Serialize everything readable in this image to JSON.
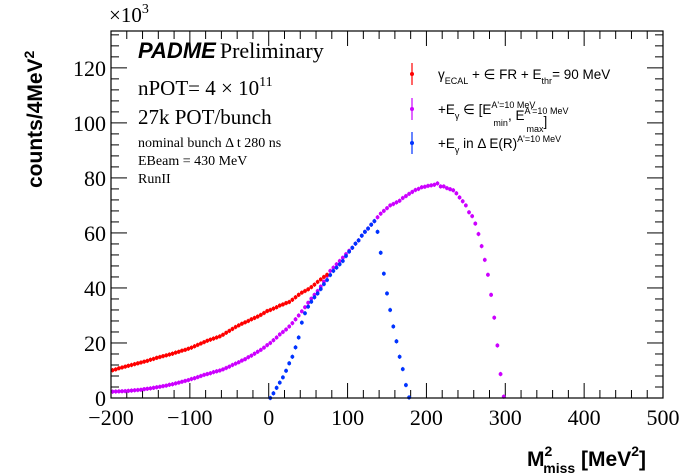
{
  "chart_data": {
    "type": "scatter",
    "title": "",
    "xlabel": "M2miss [MeV2]",
    "xlabel_parts": {
      "main": "M",
      "sup": "2",
      "sub": "miss",
      "unit_open": " [MeV",
      "unit_sup": "2",
      "unit_close": "]"
    },
    "ylabel": "counts/4MeV2",
    "ylabel_parts": {
      "main": "counts/4MeV",
      "sup": "2"
    },
    "y_multiplier": {
      "base": "×10",
      "exp": "3"
    },
    "xlim": [
      -200,
      500
    ],
    "ylim": [
      0,
      133.4
    ],
    "x_ticks": [
      -200,
      -100,
      0,
      100,
      200,
      300,
      400,
      500
    ],
    "x_tick_labels": [
      "−200",
      "−100",
      "0",
      "100",
      "200",
      "300",
      "400",
      "500"
    ],
    "y_ticks": [
      0,
      20,
      40,
      60,
      80,
      100,
      120
    ],
    "y_tick_labels": [
      "0",
      "20",
      "40",
      "60",
      "80",
      "100",
      "120"
    ],
    "x_minor_step": 20,
    "y_minor_step": 4,
    "grid": false,
    "legend_position": "top-right",
    "annotations": {
      "experiment": "PADME",
      "status": "Preliminary",
      "npot_prefix": "nPOT= 4 × 10",
      "npot_exp": "11",
      "pot_per_bunch": "27k POT/bunch",
      "bunch_dt": "nominal bunch Δ t 280 ns",
      "ebeam": "EBeam = 430 MeV",
      "run": "RunII"
    },
    "series": [
      {
        "name": "γECAL + ∈ FR + Ethr = 90 MeV",
        "legend_parts": [
          {
            "t": "γ",
            "s": "n"
          },
          {
            "t": "ECAL",
            "s": "sub"
          },
          {
            "t": " + ∈ FR + E",
            "s": "n"
          },
          {
            "t": "thr",
            "s": "sub"
          },
          {
            "t": "= 90 MeV",
            "s": "n"
          }
        ],
        "color": "#ff0000",
        "x": [
          -198,
          -194,
          -190,
          -186,
          -182,
          -178,
          -174,
          -170,
          -166,
          -162,
          -158,
          -154,
          -150,
          -146,
          -142,
          -138,
          -134,
          -130,
          -126,
          -122,
          -118,
          -114,
          -110,
          -106,
          -102,
          -98,
          -94,
          -90,
          -86,
          -82,
          -78,
          -74,
          -70,
          -66,
          -62,
          -58,
          -54,
          -50,
          -46,
          -42,
          -38,
          -34,
          -30,
          -26,
          -22,
          -18,
          -14,
          -10,
          -6,
          -2,
          2,
          6,
          10,
          14,
          18,
          22,
          26,
          30,
          34,
          38,
          42,
          46,
          50,
          54,
          58,
          62,
          66,
          70,
          74
        ],
        "y": [
          10.1,
          10.4,
          10.8,
          11.1,
          11.4,
          11.7,
          12.0,
          12.3,
          12.6,
          12.9,
          13.2,
          13.5,
          13.9,
          14.2,
          14.6,
          14.9,
          15.2,
          15.5,
          15.8,
          16.1,
          16.5,
          16.8,
          17.2,
          17.5,
          17.9,
          18.3,
          18.8,
          19.3,
          19.8,
          20.3,
          20.8,
          21.2,
          21.6,
          22.0,
          22.4,
          23.0,
          23.7,
          24.4,
          25.1,
          25.8,
          26.4,
          27.0,
          27.5,
          28.0,
          28.6,
          29.1,
          29.6,
          30.2,
          30.9,
          31.6,
          32.0,
          32.5,
          33.0,
          33.6,
          34.0,
          34.5,
          34.9,
          35.7,
          36.6,
          37.5,
          38.3,
          38.9,
          39.5,
          40.3,
          41.2,
          42.2,
          43.1,
          44.0,
          44.8
        ]
      },
      {
        "name": "+Eγ ∈ [Emin A'=10 MeV, Emax A'=10 MeV]",
        "legend_parts": [
          {
            "t": "+E",
            "s": "n"
          },
          {
            "t": "γ",
            "s": "sub"
          },
          {
            "t": " ∈ [E",
            "s": "n"
          },
          {
            "t": "A'=10 MeV",
            "s": "sup"
          },
          {
            "t": "min",
            "s": "subx"
          },
          {
            "t": ", E",
            "s": "n"
          },
          {
            "t": "A'=10 MeV",
            "s": "sup"
          },
          {
            "t": "max",
            "s": "subx"
          },
          {
            "t": "]",
            "s": "n"
          }
        ],
        "color": "#cc00ff",
        "x": [
          -198,
          -194,
          -190,
          -186,
          -182,
          -178,
          -174,
          -170,
          -166,
          -162,
          -158,
          -154,
          -150,
          -146,
          -142,
          -138,
          -134,
          -130,
          -126,
          -122,
          -118,
          -114,
          -110,
          -106,
          -102,
          -98,
          -94,
          -90,
          -86,
          -82,
          -78,
          -74,
          -70,
          -66,
          -62,
          -58,
          -54,
          -50,
          -46,
          -42,
          -38,
          -34,
          -30,
          -26,
          -22,
          -18,
          -14,
          -10,
          -6,
          -2,
          2,
          6,
          10,
          14,
          18,
          22,
          26,
          30,
          34,
          38,
          42,
          46,
          50,
          54,
          58,
          62,
          66,
          70,
          74,
          78,
          82,
          86,
          90,
          94,
          98,
          102,
          106,
          110,
          114,
          118,
          122,
          126,
          130,
          134,
          138,
          142,
          146,
          150,
          154,
          158,
          162,
          166,
          170,
          174,
          178,
          182,
          186,
          190,
          194,
          198,
          202,
          206,
          210,
          214,
          218,
          222,
          226,
          230,
          234,
          238,
          242,
          246,
          250,
          254,
          258,
          262,
          266,
          270,
          274,
          278,
          282,
          286,
          290,
          294,
          298
        ],
        "y": [
          2.3,
          2.35,
          2.4,
          2.45,
          2.5,
          2.6,
          2.7,
          2.8,
          2.9,
          3.0,
          3.2,
          3.35,
          3.5,
          3.7,
          3.9,
          4.1,
          4.3,
          4.5,
          4.8,
          5.0,
          5.3,
          5.6,
          5.9,
          6.2,
          6.5,
          6.9,
          7.2,
          7.6,
          8.0,
          8.4,
          8.7,
          9.0,
          9.4,
          9.7,
          10.0,
          10.4,
          10.9,
          11.4,
          12.0,
          12.5,
          13.0,
          13.6,
          14.1,
          14.8,
          15.4,
          16.1,
          16.8,
          17.5,
          18.3,
          19.2,
          20.0,
          21.0,
          22.0,
          23.1,
          24.0,
          24.9,
          26.0,
          27.2,
          28.6,
          30.0,
          31.5,
          33.0,
          34.6,
          36.1,
          37.5,
          38.9,
          40.5,
          42.3,
          44.4,
          46.2,
          47.4,
          48.6,
          49.8,
          51.0,
          52.3,
          53.5,
          54.6,
          56.1,
          57.3,
          59.0,
          60.4,
          61.6,
          63.0,
          64.3,
          65.7,
          67.0,
          68.0,
          69.0,
          70.0,
          70.5,
          71.1,
          71.7,
          72.7,
          73.4,
          74.2,
          74.9,
          75.6,
          76.0,
          76.6,
          76.8,
          77.1,
          77.3,
          77.5,
          78.0,
          76.9,
          76.9,
          76.3,
          75.9,
          75.5,
          74.4,
          72.9,
          71.5,
          70.0,
          67.5,
          66.1,
          63.4,
          59.6,
          55.2,
          50.2,
          44.8,
          37.5,
          29.2,
          19.1,
          8.7,
          0.5
        ]
      },
      {
        "name": "+Eγ in Δ E(R)A'=10 MeV",
        "legend_parts": [
          {
            "t": "+E",
            "s": "n"
          },
          {
            "t": "γ",
            "s": "sub"
          },
          {
            "t": " in Δ E(R)",
            "s": "n"
          },
          {
            "t": "A'=10 MeV",
            "s": "sup"
          }
        ],
        "color": "#0033ff",
        "x": [
          2,
          6,
          10,
          14,
          18,
          22,
          26,
          30,
          34,
          38,
          42,
          46,
          50,
          54,
          58,
          62,
          66,
          70,
          74,
          78,
          82,
          86,
          90,
          94,
          98,
          102,
          106,
          110,
          114,
          118,
          122,
          126,
          130,
          134,
          138,
          142,
          146,
          150,
          154,
          158,
          162,
          166,
          170,
          174,
          178
        ],
        "y": [
          0.0,
          1.7,
          3.7,
          5.6,
          7.5,
          9.9,
          12.6,
          15.0,
          18.4,
          22.0,
          27.4,
          30.8,
          33.2,
          35.0,
          36.6,
          38.0,
          39.6,
          41.4,
          42.9,
          44.7,
          46.2,
          47.4,
          48.6,
          49.8,
          51.6,
          53.2,
          54.6,
          56.1,
          57.3,
          59.0,
          60.4,
          61.6,
          63.0,
          64.3,
          60.4,
          52.8,
          45.2,
          38.0,
          32.0,
          26.0,
          20.6,
          15.0,
          10.5,
          4.7,
          0.2
        ]
      }
    ]
  }
}
